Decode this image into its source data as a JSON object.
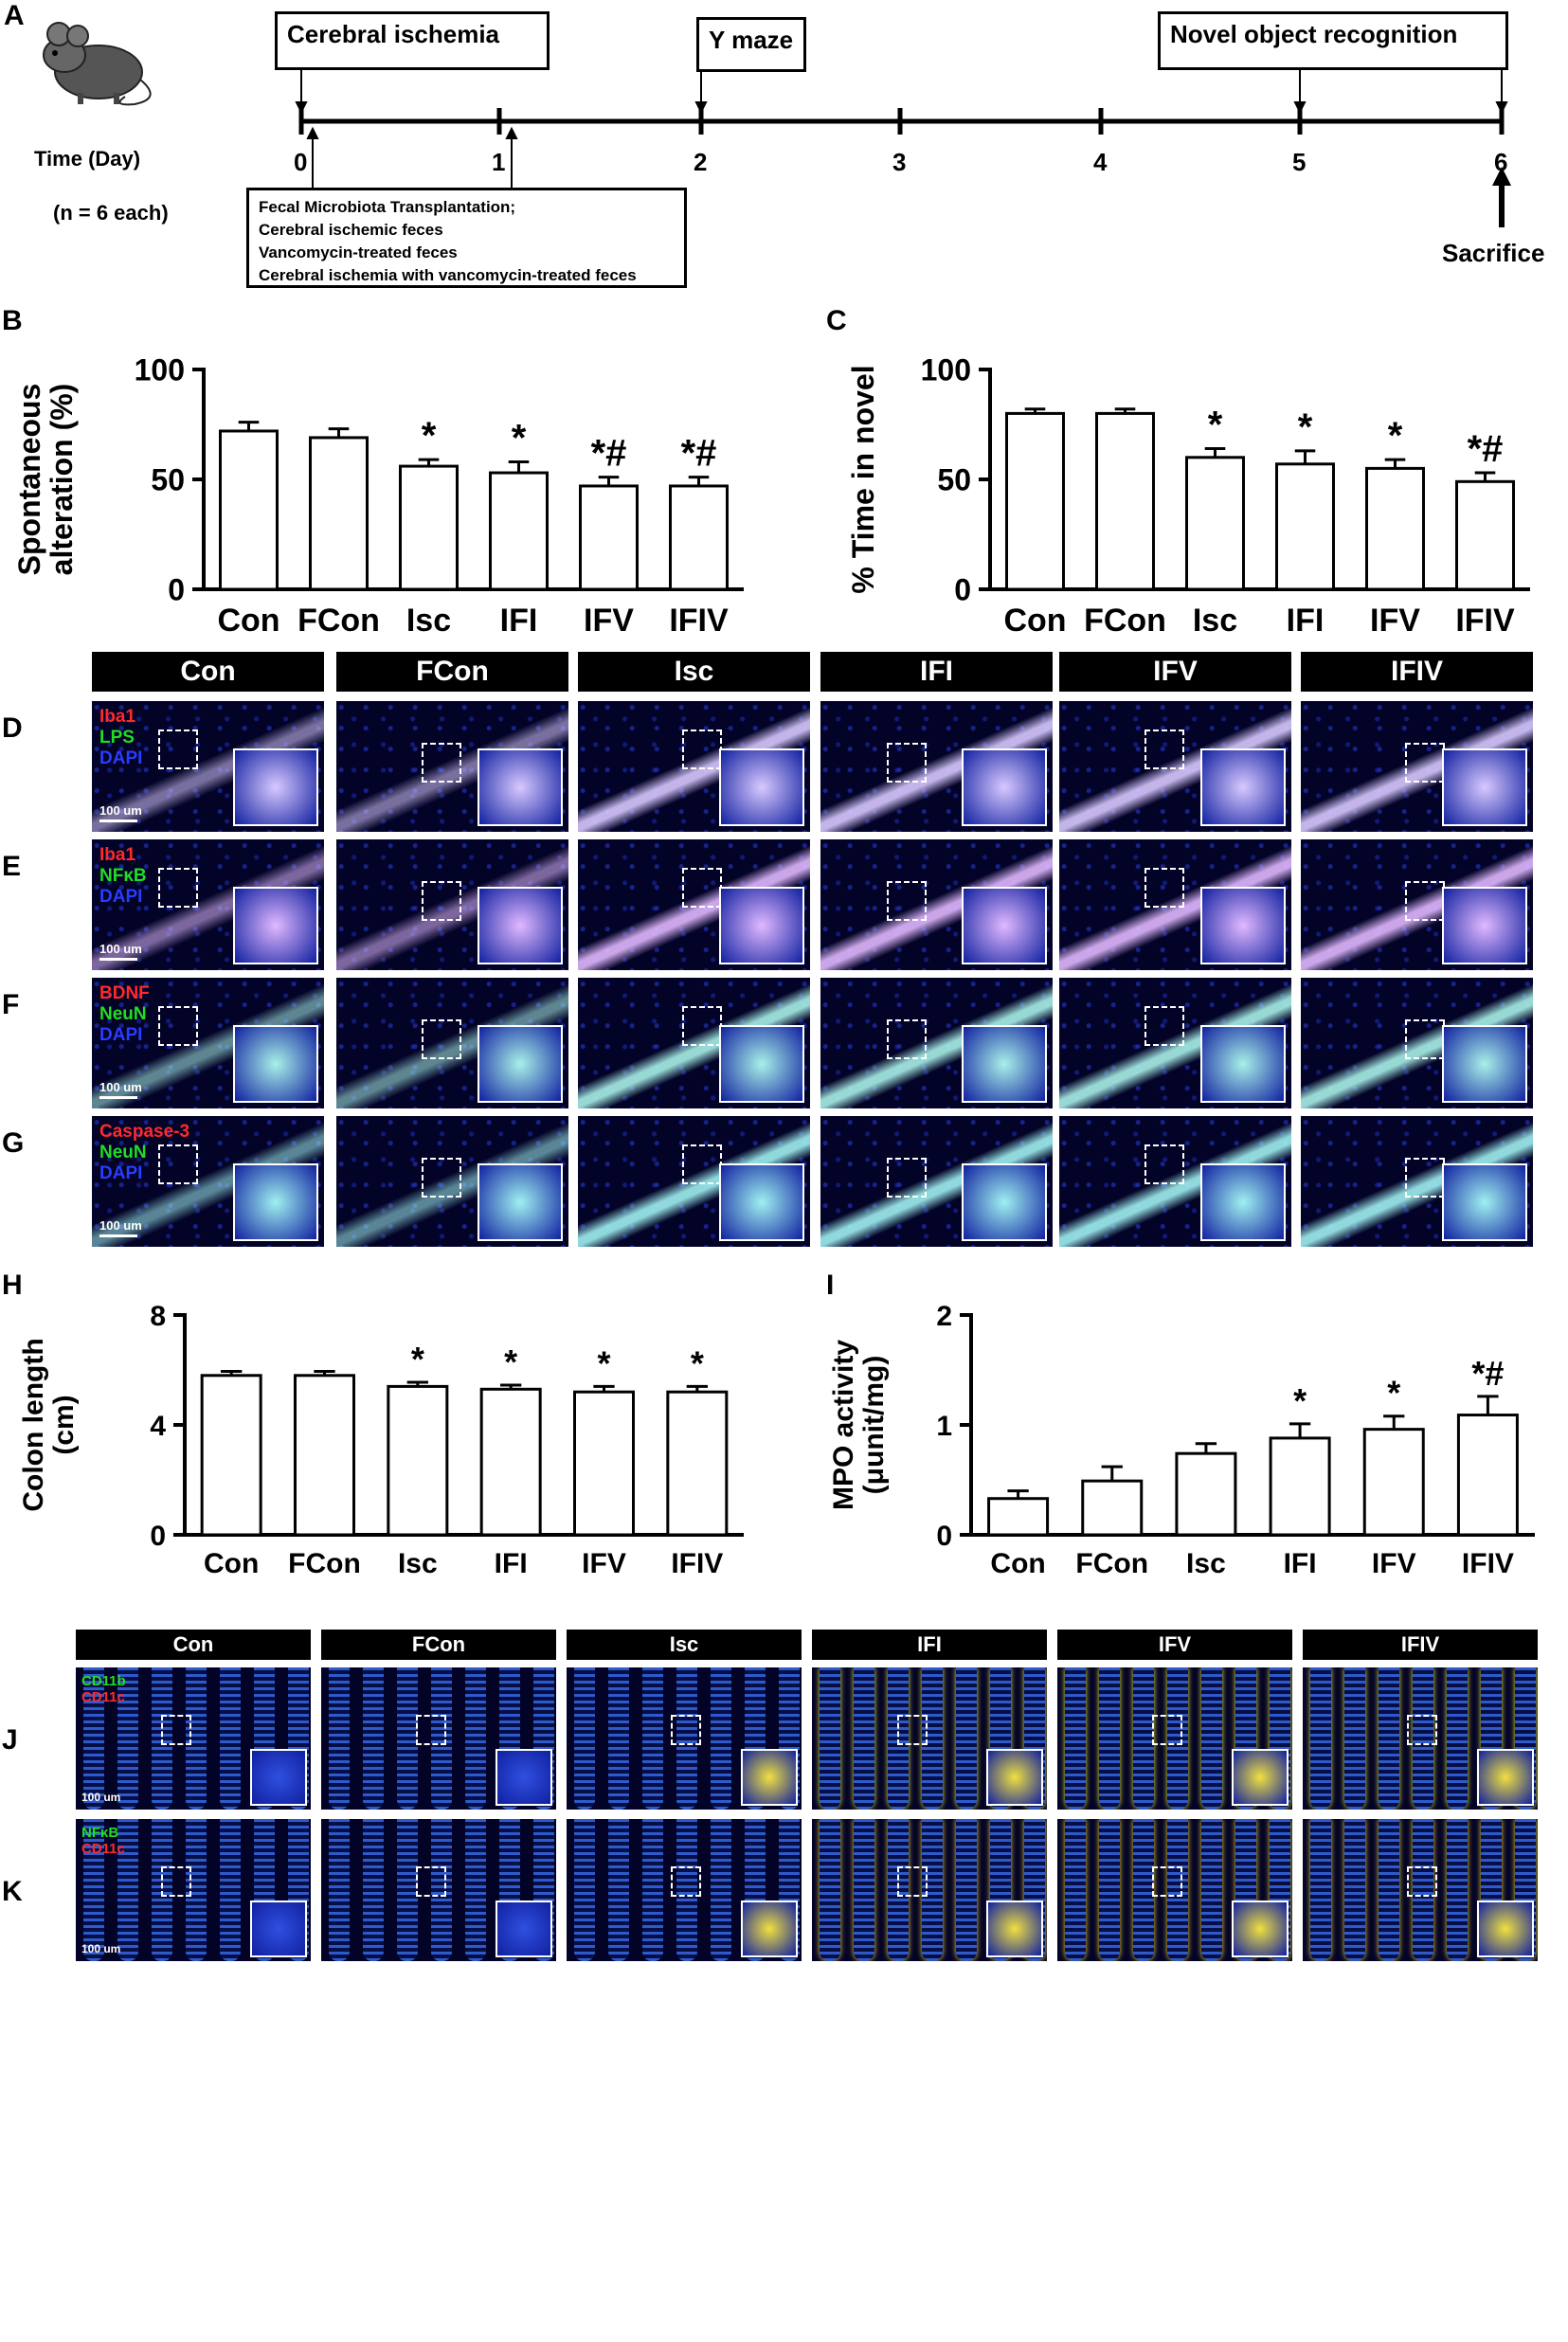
{
  "panel_letters": [
    "A",
    "B",
    "C",
    "D",
    "E",
    "F",
    "G",
    "H",
    "I",
    "J",
    "K"
  ],
  "timeline": {
    "time_label": "Time (Day)",
    "n_label": "(n = 6 each)",
    "days": [
      "0",
      "1",
      "2",
      "3",
      "4",
      "5",
      "6"
    ],
    "box_cerebral": "Cerebral ischemia",
    "box_ymaze": "Y maze",
    "box_novel": "Novel object recognition",
    "fmt_lines": [
      "Fecal Microbiota Transplantation;",
      "Cerebral ischemic feces",
      "Vancomycin-treated feces",
      "Cerebral ischemia with vancomycin-treated feces"
    ],
    "sacrifice": "Sacrifice"
  },
  "chart_data": [
    {
      "panel": "B",
      "type": "bar",
      "categories": [
        "Con",
        "FCon",
        "Isc",
        "IFI",
        "IFV",
        "IFIV"
      ],
      "values": [
        72,
        69,
        56,
        53,
        47,
        47
      ],
      "errors": [
        4,
        4,
        3,
        5,
        4,
        4
      ],
      "annotations": [
        "",
        "",
        "*",
        "*",
        "*#",
        "*#"
      ],
      "ylabel_lines": [
        "Spontaneous",
        "alteration (%)"
      ],
      "ylim": [
        0,
        100
      ],
      "yticks": [
        "0",
        "50",
        "100"
      ]
    },
    {
      "panel": "C",
      "type": "bar",
      "categories": [
        "Con",
        "FCon",
        "Isc",
        "IFI",
        "IFV",
        "IFIV"
      ],
      "values": [
        80,
        80,
        60,
        57,
        55,
        49
      ],
      "errors": [
        2,
        2,
        4,
        6,
        4,
        4
      ],
      "annotations": [
        "",
        "",
        "*",
        "*",
        "*",
        "*#"
      ],
      "ylabel_lines": [
        "% Time in novel"
      ],
      "ylim": [
        0,
        100
      ],
      "yticks": [
        "0",
        "50",
        "100"
      ]
    },
    {
      "panel": "H",
      "type": "bar",
      "categories": [
        "Con",
        "FCon",
        "Isc",
        "IFI",
        "IFV",
        "IFIV"
      ],
      "values": [
        5.8,
        5.8,
        5.4,
        5.3,
        5.2,
        5.2
      ],
      "errors": [
        0.15,
        0.15,
        0.15,
        0.15,
        0.2,
        0.2
      ],
      "annotations": [
        "",
        "",
        "*",
        "*",
        "*",
        "*"
      ],
      "ylabel_lines": [
        "Colon length",
        "(cm)"
      ],
      "ylim": [
        0,
        8
      ],
      "yticks": [
        "0",
        "4",
        "8"
      ]
    },
    {
      "panel": "I",
      "type": "bar",
      "categories": [
        "Con",
        "FCon",
        "Isc",
        "IFI",
        "IFV",
        "IFIV"
      ],
      "values": [
        0.33,
        0.49,
        0.74,
        0.88,
        0.96,
        1.09
      ],
      "errors": [
        0.07,
        0.13,
        0.09,
        0.13,
        0.12,
        0.17
      ],
      "annotations": [
        "",
        "",
        "",
        "*",
        "*",
        "*#"
      ],
      "ylabel_lines": [
        "MPO activity",
        "(μunit/mg)"
      ],
      "ylim": [
        0,
        2
      ],
      "yticks": [
        "0",
        "1",
        "2"
      ]
    }
  ],
  "brain_columns": [
    "Con",
    "FCon",
    "Isc",
    "IFI",
    "IFV",
    "IFIV"
  ],
  "brain_rows": [
    {
      "letter": "D",
      "labels": [
        {
          "text": "Iba1",
          "color": "#ff2a2a"
        },
        {
          "text": "LPS",
          "color": "#22dd22"
        },
        {
          "text": "DAPI",
          "color": "#2a3cff"
        }
      ],
      "band": "#d8c8ff"
    },
    {
      "letter": "E",
      "labels": [
        {
          "text": "Iba1",
          "color": "#ff2a2a"
        },
        {
          "text": "NFκB",
          "color": "#22dd22"
        },
        {
          "text": "DAPI",
          "color": "#2a3cff"
        }
      ],
      "band": "#e0b8ff"
    },
    {
      "letter": "F",
      "labels": [
        {
          "text": "BDNF",
          "color": "#ff2a2a"
        },
        {
          "text": "NeuN",
          "color": "#22dd22"
        },
        {
          "text": "DAPI",
          "color": "#2a3cff"
        }
      ],
      "band": "#a8f0e8"
    },
    {
      "letter": "G",
      "labels": [
        {
          "text": "Caspase-3",
          "color": "#ff2a2a"
        },
        {
          "text": "NeuN",
          "color": "#22dd22"
        },
        {
          "text": "DAPI",
          "color": "#2a3cff"
        }
      ],
      "band": "#9ff0f0"
    }
  ],
  "colon_rows": [
    {
      "letter": "J",
      "labels": [
        {
          "text": "CD11b",
          "color": "#22dd22"
        },
        {
          "text": "CD11c",
          "color": "#ff2a2a"
        }
      ]
    },
    {
      "letter": "K",
      "labels": [
        {
          "text": "NFκB",
          "color": "#22dd22"
        },
        {
          "text": "CD11c",
          "color": "#ff2a2a"
        }
      ]
    }
  ],
  "scale_label": "100 um"
}
